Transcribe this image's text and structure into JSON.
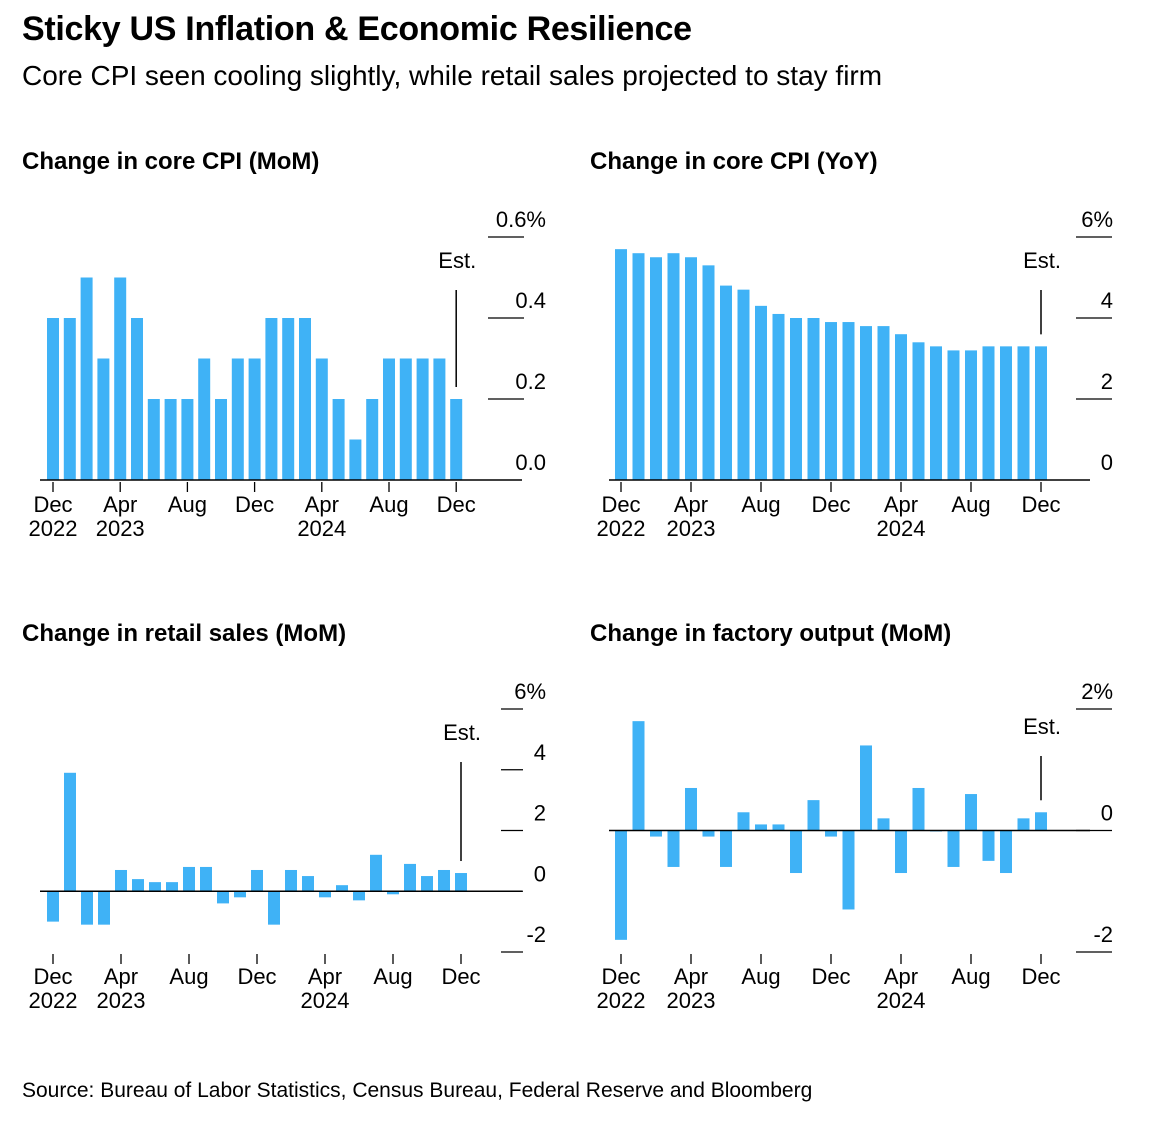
{
  "title": "Sticky US Inflation & Economic Resilience",
  "subtitle": "Core CPI seen cooling slightly, while retail sales projected to stay firm",
  "source": "Source: Bureau of Labor Statistics, Census Bureau, Federal Reserve and Bloomberg",
  "bar_color": "#3fb2f6",
  "chart_data": [
    {
      "type": "bar",
      "title": "Change in core CPI (MoM)",
      "x": [
        "Dec 2022",
        "Jan 2023",
        "Feb 2023",
        "Mar 2023",
        "Apr 2023",
        "May 2023",
        "Jun 2023",
        "Jul 2023",
        "Aug 2023",
        "Sep 2023",
        "Oct 2023",
        "Nov 2023",
        "Dec 2023",
        "Jan 2024",
        "Feb 2024",
        "Mar 2024",
        "Apr 2024",
        "May 2024",
        "Jun 2024",
        "Jul 2024",
        "Aug 2024",
        "Sep 2024",
        "Oct 2024",
        "Nov 2024",
        "Dec 2024"
      ],
      "values": [
        0.4,
        0.4,
        0.5,
        0.3,
        0.5,
        0.4,
        0.2,
        0.2,
        0.2,
        0.3,
        0.2,
        0.3,
        0.3,
        0.4,
        0.4,
        0.4,
        0.3,
        0.2,
        0.1,
        0.2,
        0.3,
        0.3,
        0.3,
        0.3,
        0.2
      ],
      "ylim": [
        0,
        0.6
      ],
      "ticks": [
        "0.6%",
        "0.4",
        "0.2",
        "0.0"
      ],
      "tick_values": [
        0.6,
        0.4,
        0.2,
        0.0
      ],
      "xtick_labels": [
        {
          "month": "Dec",
          "year": "2022",
          "index": 0
        },
        {
          "month": "Apr",
          "year": "2023",
          "index": 4
        },
        {
          "month": "Aug",
          "year": "",
          "index": 8
        },
        {
          "month": "Dec",
          "year": "",
          "index": 12
        },
        {
          "month": "Apr",
          "year": "2024",
          "index": 16
        },
        {
          "month": "Aug",
          "year": "",
          "index": 20
        },
        {
          "month": "Dec",
          "year": "",
          "index": 24
        }
      ],
      "annotation": "Est."
    },
    {
      "type": "bar",
      "title": "Change in core CPI (YoY)",
      "x": [
        "Dec 2022",
        "Jan 2023",
        "Feb 2023",
        "Mar 2023",
        "Apr 2023",
        "May 2023",
        "Jun 2023",
        "Jul 2023",
        "Aug 2023",
        "Sep 2023",
        "Oct 2023",
        "Nov 2023",
        "Dec 2023",
        "Jan 2024",
        "Feb 2024",
        "Mar 2024",
        "Apr 2024",
        "May 2024",
        "Jun 2024",
        "Jul 2024",
        "Aug 2024",
        "Sep 2024",
        "Oct 2024",
        "Nov 2024",
        "Dec 2024"
      ],
      "values": [
        5.7,
        5.6,
        5.5,
        5.6,
        5.5,
        5.3,
        4.8,
        4.7,
        4.3,
        4.1,
        4.0,
        4.0,
        3.9,
        3.9,
        3.8,
        3.8,
        3.6,
        3.4,
        3.3,
        3.2,
        3.2,
        3.3,
        3.3,
        3.3,
        3.3
      ],
      "ylim": [
        0,
        6
      ],
      "ticks": [
        "6%",
        "4",
        "2",
        "0"
      ],
      "tick_values": [
        6,
        4,
        2,
        0
      ],
      "xtick_labels": [
        {
          "month": "Dec",
          "year": "2022",
          "index": 0
        },
        {
          "month": "Apr",
          "year": "2023",
          "index": 4
        },
        {
          "month": "Aug",
          "year": "",
          "index": 8
        },
        {
          "month": "Dec",
          "year": "",
          "index": 12
        },
        {
          "month": "Apr",
          "year": "2024",
          "index": 16
        },
        {
          "month": "Aug",
          "year": "",
          "index": 20
        },
        {
          "month": "Dec",
          "year": "",
          "index": 24
        }
      ],
      "annotation": "Est."
    },
    {
      "type": "bar",
      "title": "Change in retail sales (MoM)",
      "x": [
        "Dec 2022",
        "Jan 2023",
        "Feb 2023",
        "Mar 2023",
        "Apr 2023",
        "May 2023",
        "Jun 2023",
        "Jul 2023",
        "Aug 2023",
        "Sep 2023",
        "Oct 2023",
        "Nov 2023",
        "Dec 2023",
        "Jan 2024",
        "Feb 2024",
        "Mar 2024",
        "Apr 2024",
        "May 2024",
        "Jun 2024",
        "Jul 2024",
        "Aug 2024",
        "Sep 2024",
        "Oct 2024",
        "Nov 2024",
        "Dec 2024"
      ],
      "values": [
        -1.0,
        3.9,
        -1.1,
        -1.1,
        0.7,
        0.4,
        0.3,
        0.3,
        0.8,
        0.8,
        -0.4,
        -0.2,
        0.7,
        -1.1,
        0.7,
        0.5,
        -0.2,
        0.2,
        -0.3,
        1.2,
        -0.1,
        0.9,
        0.5,
        0.7,
        0.6
      ],
      "ylim": [
        -2,
        6
      ],
      "ticks": [
        "6%",
        "4",
        "2",
        "0",
        "-2"
      ],
      "tick_values": [
        6,
        4,
        2,
        0,
        -2
      ],
      "xtick_labels": [
        {
          "month": "Dec",
          "year": "2022",
          "index": 0
        },
        {
          "month": "Apr",
          "year": "2023",
          "index": 4
        },
        {
          "month": "Aug",
          "year": "",
          "index": 8
        },
        {
          "month": "Dec",
          "year": "",
          "index": 12
        },
        {
          "month": "Apr",
          "year": "2024",
          "index": 16
        },
        {
          "month": "Aug",
          "year": "",
          "index": 20
        },
        {
          "month": "Dec",
          "year": "",
          "index": 24
        }
      ],
      "annotation": "Est."
    },
    {
      "type": "bar",
      "title": "Change in factory output (MoM)",
      "x": [
        "Dec 2022",
        "Jan 2023",
        "Feb 2023",
        "Mar 2023",
        "Apr 2023",
        "May 2023",
        "Jun 2023",
        "Jul 2023",
        "Aug 2023",
        "Sep 2023",
        "Oct 2023",
        "Nov 2023",
        "Dec 2023",
        "Jan 2024",
        "Feb 2024",
        "Mar 2024",
        "Apr 2024",
        "May 2024",
        "Jun 2024",
        "Jul 2024",
        "Aug 2024",
        "Sep 2024",
        "Oct 2024",
        "Nov 2024",
        "Dec 2024"
      ],
      "values": [
        -1.8,
        1.8,
        -0.1,
        -0.6,
        0.7,
        -0.1,
        -0.6,
        0.3,
        0.1,
        0.1,
        -0.7,
        0.5,
        -0.1,
        -1.3,
        1.4,
        0.2,
        -0.7,
        0.7,
        0.0,
        -0.6,
        0.6,
        -0.5,
        -0.7,
        0.2,
        0.3
      ],
      "ylim": [
        -2,
        2
      ],
      "ticks": [
        "2%",
        "0",
        "-2"
      ],
      "tick_values": [
        2,
        0,
        -2
      ],
      "xtick_labels": [
        {
          "month": "Dec",
          "year": "2022",
          "index": 0
        },
        {
          "month": "Apr",
          "year": "2023",
          "index": 4
        },
        {
          "month": "Aug",
          "year": "",
          "index": 8
        },
        {
          "month": "Dec",
          "year": "",
          "index": 12
        },
        {
          "month": "Apr",
          "year": "2024",
          "index": 16
        },
        {
          "month": "Aug",
          "year": "",
          "index": 20
        },
        {
          "month": "Dec",
          "year": "",
          "index": 24
        }
      ],
      "annotation": "Est."
    }
  ]
}
